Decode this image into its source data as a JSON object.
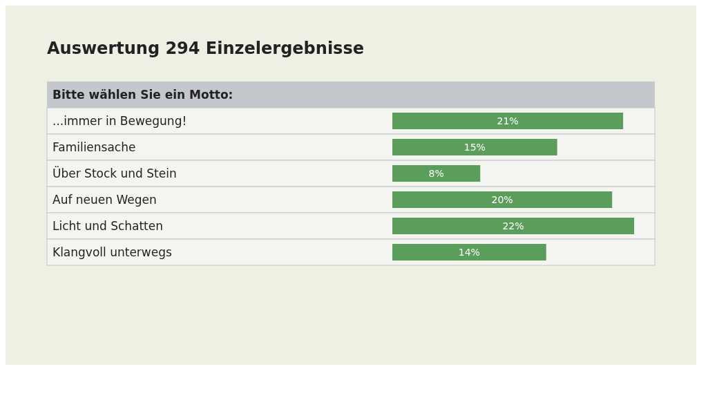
{
  "chart_data": {
    "type": "bar",
    "orientation": "horizontal",
    "title": "Auswertung 294 Einzelergebnisse",
    "subtitle": "Bitte wählen Sie ein Motto:",
    "categories": [
      "...immer in Bewegung!",
      "Familiensache",
      "Über Stock und Stein",
      "Auf neuen Wegen",
      "Licht und Schatten",
      "Klangvoll unterwegs"
    ],
    "values": [
      21,
      15,
      8,
      20,
      22,
      14
    ],
    "value_labels": [
      "21%",
      "15%",
      "8%",
      "20%",
      "22%",
      "14%"
    ],
    "color": "#5b9d5b"
  }
}
